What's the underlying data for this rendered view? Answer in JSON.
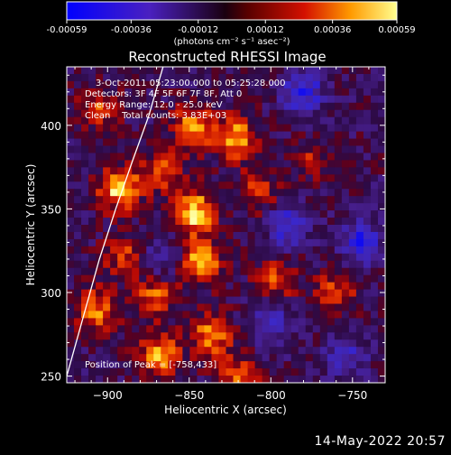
{
  "chart_data": {
    "type": "heatmap",
    "title": "Reconstructed RHESSI Image",
    "xlabel": "Heliocentric X (arcsec)",
    "ylabel": "Heliocentric Y (arcsec)",
    "xlim": [
      -925,
      -730
    ],
    "ylim": [
      246,
      435
    ],
    "xticks": [
      -900,
      -850,
      -800,
      -750
    ],
    "yticks": [
      250,
      300,
      350,
      400
    ],
    "colorbar": {
      "ticks": [
        -0.00059,
        -0.00036,
        -0.00012,
        0.00012,
        0.00036,
        0.00059
      ],
      "tick_labels": [
        "-0.00059",
        "-0.00036",
        "-0.00012",
        "0.00012",
        "0.00036",
        "0.00059"
      ],
      "units": "(photons cm⁻² s⁻¹ asec⁻²)",
      "range": [
        -0.00059,
        0.00059
      ]
    },
    "annotations": [
      "3-Oct-2011 05:23:00.000 to 05:25:28.000",
      "Detectors: 3F 4F 5F 6F 7F 8F, Att 0",
      "Energy Range: 12.0 - 25.0 keV",
      "Clean    Total counts: 3.83E+03"
    ],
    "peak_label": "Position of Peak = [-758,433]",
    "peak": [
      -758,
      433
    ],
    "limb_curve": [
      [
        -925,
        250
      ],
      [
        -915,
        285
      ],
      [
        -905,
        320
      ],
      [
        -895,
        350
      ],
      [
        -885,
        378
      ],
      [
        -875,
        405
      ],
      [
        -866,
        435
      ]
    ],
    "bright_sources": [
      {
        "x": -893,
        "y": 362,
        "value": 0.00055
      },
      {
        "x": -847,
        "y": 348,
        "value": 0.00059
      },
      {
        "x": -843,
        "y": 318,
        "value": 0.00052
      },
      {
        "x": -847,
        "y": 400,
        "value": 0.00042
      },
      {
        "x": -822,
        "y": 392,
        "value": 0.0005
      },
      {
        "x": -868,
        "y": 262,
        "value": 0.00048
      },
      {
        "x": -836,
        "y": 275,
        "value": 0.00045
      },
      {
        "x": -907,
        "y": 290,
        "value": 0.0004
      },
      {
        "x": -871,
        "y": 298,
        "value": 0.00038
      },
      {
        "x": -797,
        "y": 308,
        "value": 0.00032
      },
      {
        "x": -760,
        "y": 300,
        "value": 0.0003
      },
      {
        "x": -775,
        "y": 380,
        "value": 0.00022
      },
      {
        "x": -820,
        "y": 250,
        "value": 0.00035
      },
      {
        "x": -905,
        "y": 410,
        "value": 0.0003
      },
      {
        "x": -890,
        "y": 322,
        "value": 0.0003
      },
      {
        "x": -808,
        "y": 360,
        "value": 0.00028
      },
      {
        "x": -866,
        "y": 372,
        "value": 0.00033
      }
    ],
    "dark_sources": [
      {
        "x": -780,
        "y": 420,
        "value": -0.0004
      },
      {
        "x": -790,
        "y": 340,
        "value": -0.00035
      },
      {
        "x": -745,
        "y": 330,
        "value": -0.00038
      },
      {
        "x": -800,
        "y": 282,
        "value": -0.0003
      },
      {
        "x": -755,
        "y": 262,
        "value": -0.0003
      },
      {
        "x": -868,
        "y": 320,
        "value": -0.00025
      }
    ]
  },
  "timestamp": "14-May-2022 20:57"
}
